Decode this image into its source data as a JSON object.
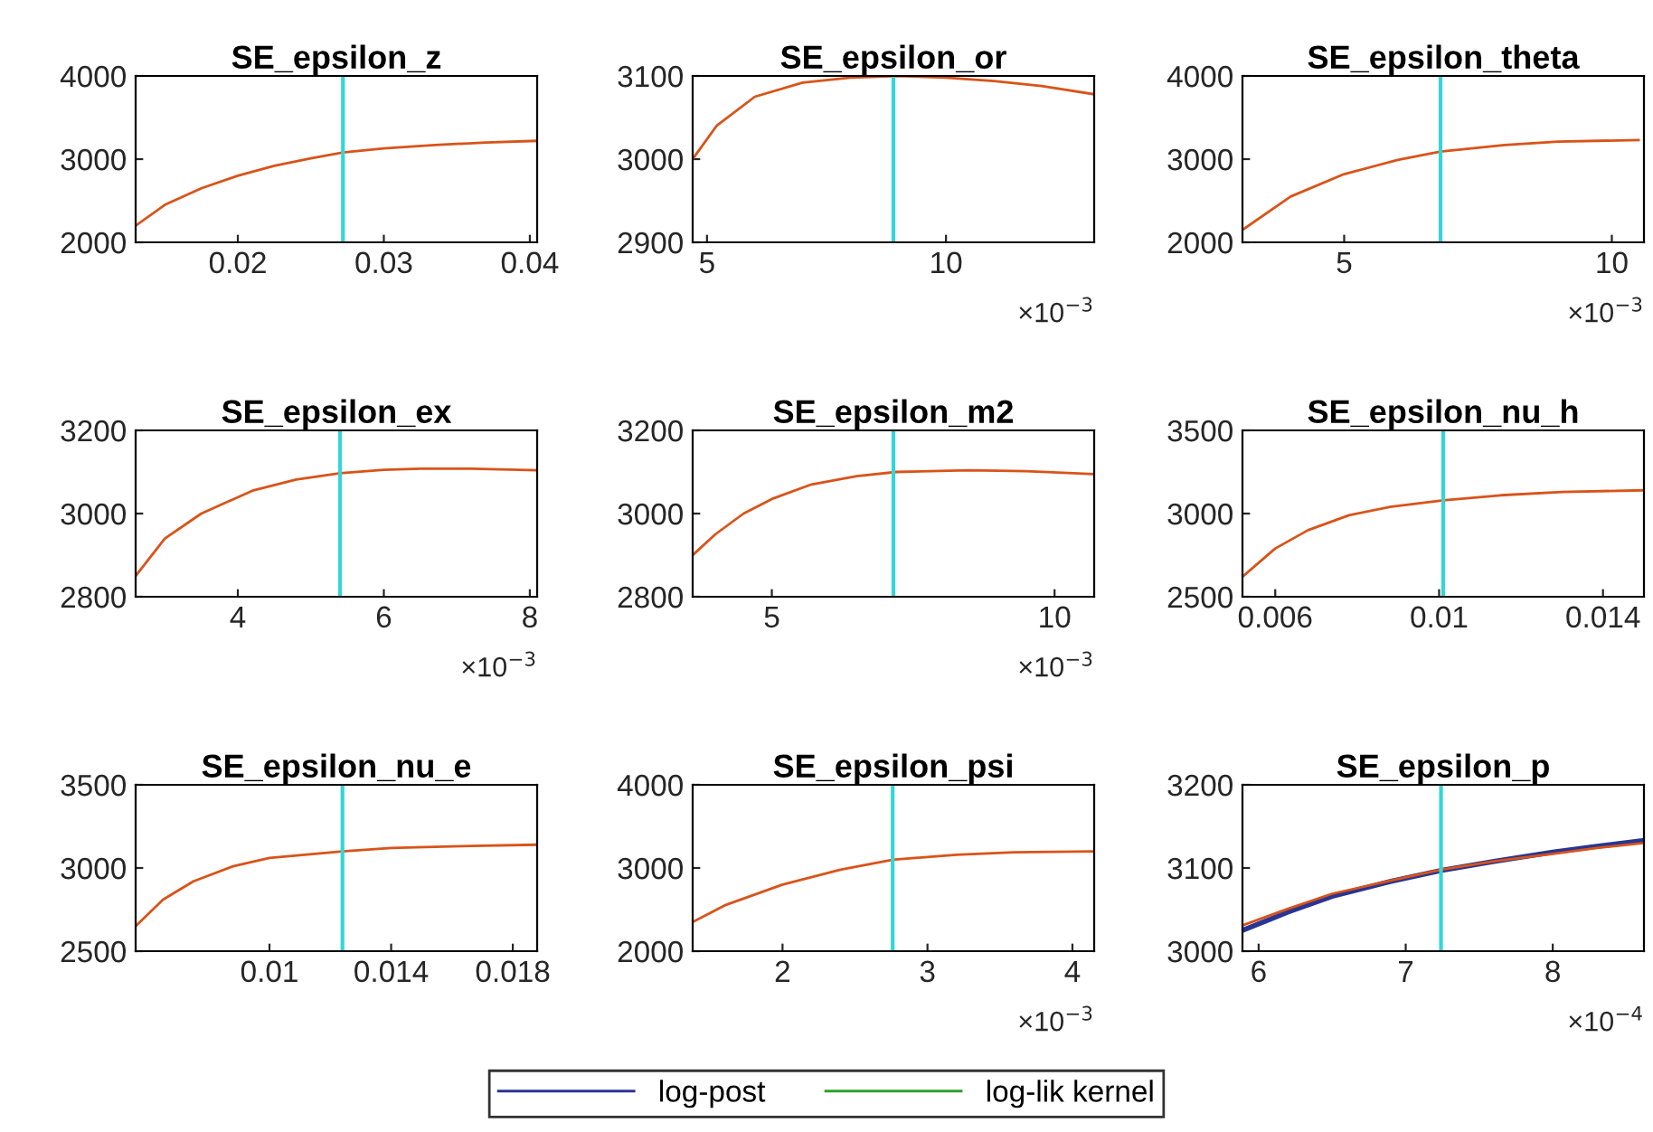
{
  "chart_data": [
    {
      "type": "line",
      "title": "SE_epsilon_z",
      "x": [
        0.013,
        0.015,
        0.0175,
        0.02,
        0.0225,
        0.025,
        0.0272,
        0.03,
        0.0335,
        0.037,
        0.0405
      ],
      "xlim": [
        0.013,
        0.0405
      ],
      "xticks": [
        0.02,
        0.03,
        0.04
      ],
      "ylim": [
        2000,
        4000
      ],
      "yticks": [
        2000,
        3000,
        4000
      ],
      "series": [
        {
          "color": "#d95319",
          "values": [
            2200,
            2450,
            2650,
            2800,
            2920,
            3010,
            3080,
            3130,
            3170,
            3200,
            3220
          ]
        }
      ],
      "ref_lines": [
        {
          "axis": "x",
          "value": 0.0272,
          "color": "#33d6d6"
        }
      ]
    },
    {
      "type": "line",
      "title": "SE_epsilon_or",
      "x": [
        4.7,
        5.2,
        6,
        7,
        8,
        9,
        10,
        11,
        12,
        13.1
      ],
      "xlim": [
        4.7,
        13.1
      ],
      "xticks": [
        5,
        10
      ],
      "ylim": [
        2900,
        3100
      ],
      "yticks": [
        2900,
        3000,
        3100
      ],
      "annotations": [
        "×10$^{−3}$"
      ],
      "series": [
        {
          "color": "#d95319",
          "values": [
            3000,
            3040,
            3075,
            3092,
            3098,
            3100,
            3098,
            3094,
            3088,
            3078
          ]
        }
      ],
      "ref_lines": [
        {
          "axis": "x",
          "value": 8.9,
          "color": "#33d6d6"
        }
      ]
    },
    {
      "type": "line",
      "title": "SE_epsilon_theta",
      "x": [
        3.1,
        4,
        5,
        6,
        6.8,
        8,
        9,
        10.5
      ],
      "xlim": [
        3.1,
        10.6
      ],
      "xticks": [
        5,
        10
      ],
      "ylim": [
        2000,
        4000
      ],
      "yticks": [
        2000,
        3000,
        4000
      ],
      "annotations": [
        "×10$^{−3}$"
      ],
      "series": [
        {
          "color": "#d95319",
          "values": [
            2150,
            2550,
            2820,
            2990,
            3090,
            3170,
            3210,
            3230
          ]
        }
      ],
      "ref_lines": [
        {
          "axis": "x",
          "value": 6.8,
          "color": "#33d6d6"
        }
      ]
    },
    {
      "type": "line",
      "title": "SE_epsilon_ex",
      "x": [
        2.6,
        3,
        3.5,
        4.2,
        4.8,
        5.4,
        6,
        6.5,
        7.2,
        8.1
      ],
      "xlim": [
        2.6,
        8.1
      ],
      "xticks": [
        4,
        6,
        8
      ],
      "ylim": [
        2800,
        3200
      ],
      "yticks": [
        2800,
        3000,
        3200
      ],
      "annotations": [
        "×10$^{−3}$"
      ],
      "series": [
        {
          "color": "#d95319",
          "values": [
            2850,
            2940,
            3000,
            3055,
            3082,
            3097,
            3105,
            3108,
            3108,
            3104
          ]
        }
      ],
      "ref_lines": [
        {
          "axis": "x",
          "value": 5.4,
          "color": "#33d6d6"
        }
      ]
    },
    {
      "type": "line",
      "title": "SE_epsilon_m2",
      "x": [
        3.6,
        4,
        4.5,
        5,
        5.7,
        6.5,
        7.2,
        8.5,
        9.5,
        10.7
      ],
      "xlim": [
        3.6,
        10.7
      ],
      "xticks": [
        5,
        10
      ],
      "ylim": [
        2800,
        3200
      ],
      "yticks": [
        2800,
        3000,
        3200
      ],
      "annotations": [
        "×10$^{−3}$"
      ],
      "series": [
        {
          "color": "#d95319",
          "values": [
            2900,
            2950,
            3000,
            3035,
            3070,
            3090,
            3100,
            3104,
            3102,
            3095
          ]
        }
      ],
      "ref_lines": [
        {
          "axis": "x",
          "value": 7.15,
          "color": "#33d6d6"
        }
      ]
    },
    {
      "type": "line",
      "title": "SE_epsilon_nu_h",
      "x": [
        0.0052,
        0.006,
        0.0068,
        0.0078,
        0.0088,
        0.0101,
        0.0115,
        0.013,
        0.015
      ],
      "xlim": [
        0.0052,
        0.015
      ],
      "xticks": [
        0.006,
        0.01,
        0.014
      ],
      "ylim": [
        2500,
        3500
      ],
      "yticks": [
        2500,
        3000,
        3500
      ],
      "series": [
        {
          "color": "#d95319",
          "values": [
            2620,
            2790,
            2900,
            2990,
            3040,
            3080,
            3110,
            3130,
            3140
          ]
        }
      ],
      "ref_lines": [
        {
          "axis": "x",
          "value": 0.0101,
          "color": "#33d6d6"
        }
      ]
    },
    {
      "type": "line",
      "title": "SE_epsilon_nu_e",
      "x": [
        0.0056,
        0.0065,
        0.0075,
        0.0088,
        0.01,
        0.0124,
        0.014,
        0.016,
        0.0188
      ],
      "xlim": [
        0.0056,
        0.0188
      ],
      "xticks": [
        0.01,
        0.014,
        0.018
      ],
      "ylim": [
        2500,
        3500
      ],
      "yticks": [
        2500,
        3000,
        3500
      ],
      "series": [
        {
          "color": "#d95319",
          "values": [
            2650,
            2810,
            2920,
            3010,
            3060,
            3100,
            3120,
            3130,
            3140
          ]
        }
      ],
      "ref_lines": [
        {
          "axis": "x",
          "value": 0.0124,
          "color": "#33d6d6"
        }
      ]
    },
    {
      "type": "line",
      "title": "SE_epsilon_psi",
      "x": [
        1.38,
        1.6,
        2,
        2.4,
        2.76,
        3.2,
        3.6,
        4.15
      ],
      "xlim": [
        1.38,
        4.15
      ],
      "xticks": [
        2,
        3,
        4
      ],
      "ylim": [
        2000,
        4000
      ],
      "yticks": [
        2000,
        3000,
        4000
      ],
      "annotations": [
        "×10$^{−3}$"
      ],
      "series": [
        {
          "color": "#d95319",
          "values": [
            2350,
            2550,
            2800,
            2980,
            3100,
            3160,
            3190,
            3200
          ]
        }
      ],
      "ref_lines": [
        {
          "axis": "x",
          "value": 2.76,
          "color": "#33d6d6"
        }
      ]
    },
    {
      "type": "line",
      "title": "SE_epsilon_p",
      "x": [
        5.89,
        6.2,
        6.5,
        6.9,
        7.24,
        7.6,
        8,
        8.3,
        8.62
      ],
      "xlim": [
        5.89,
        8.62
      ],
      "xticks": [
        6,
        7,
        8
      ],
      "ylim": [
        3000,
        3200
      ],
      "yticks": [
        3000,
        3100,
        3200
      ],
      "annotations": [
        "×10$^{−4}$"
      ],
      "legend": "bottom",
      "series": [
        {
          "name": "log-post",
          "color": "#283593",
          "values": [
            3025,
            3047,
            3066,
            3084,
            3097,
            3108,
            3119,
            3126,
            3133
          ]
        },
        {
          "name": "log-lik kernel",
          "color": "#2ca02c",
          "values": [
            null,
            null,
            null,
            null,
            null,
            null,
            null,
            null,
            null
          ]
        },
        {
          "color": "#d95319",
          "values": [
            3031,
            3051,
            3069,
            3085,
            3098,
            3108,
            3117,
            3124,
            3130
          ]
        }
      ],
      "ref_lines": [
        {
          "axis": "x",
          "value": 7.24,
          "color": "#33d6d6"
        }
      ]
    }
  ]
}
